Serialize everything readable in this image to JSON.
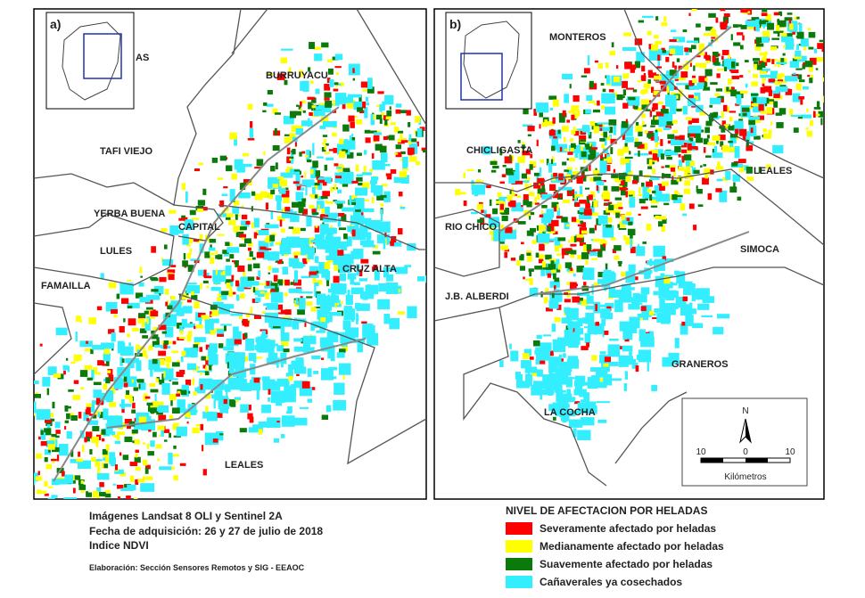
{
  "panel_a": {
    "tag": "a)",
    "labels": [
      "AS",
      "BURRUYACU",
      "TAFI VIEJO",
      "YERBA BUENA",
      "CAPITAL",
      "LULES",
      "CRUZ ALTA",
      "FAMAILLA",
      "LEALES"
    ]
  },
  "panel_b": {
    "tag": "b)",
    "labels": [
      "MONTEROS",
      "CHICLIGASTA",
      "LEALES",
      "RIO CHICO",
      "SIMOCA",
      "J.B. ALBERDI",
      "GRANEROS",
      "LA COCHA"
    ],
    "scale": {
      "north": "N",
      "ticks": [
        "10",
        "0",
        "10"
      ],
      "unit": "Kilómetros"
    }
  },
  "footer": {
    "lines": [
      "Imágenes Landsat 8 OLI y Sentinel 2A",
      "Fecha de adquisición: 26 y 27 de julio de 2018",
      "Indice NDVI"
    ],
    "credit": "Elaboración: Sección Sensores Remotos y SIG - EEAOC"
  },
  "legend": {
    "title": "NIVEL DE AFECTACION POR HELADAS",
    "items": [
      {
        "label": "Severamente afectado por heladas",
        "color": "#ff0000"
      },
      {
        "label": "Medianamente afectado por heladas",
        "color": "#ffff00"
      },
      {
        "label": "Suavemente afectado por heladas",
        "color": "#0a7a0a"
      },
      {
        "label": "Cañaverales ya cosechados",
        "color": "#33eeff"
      }
    ]
  }
}
